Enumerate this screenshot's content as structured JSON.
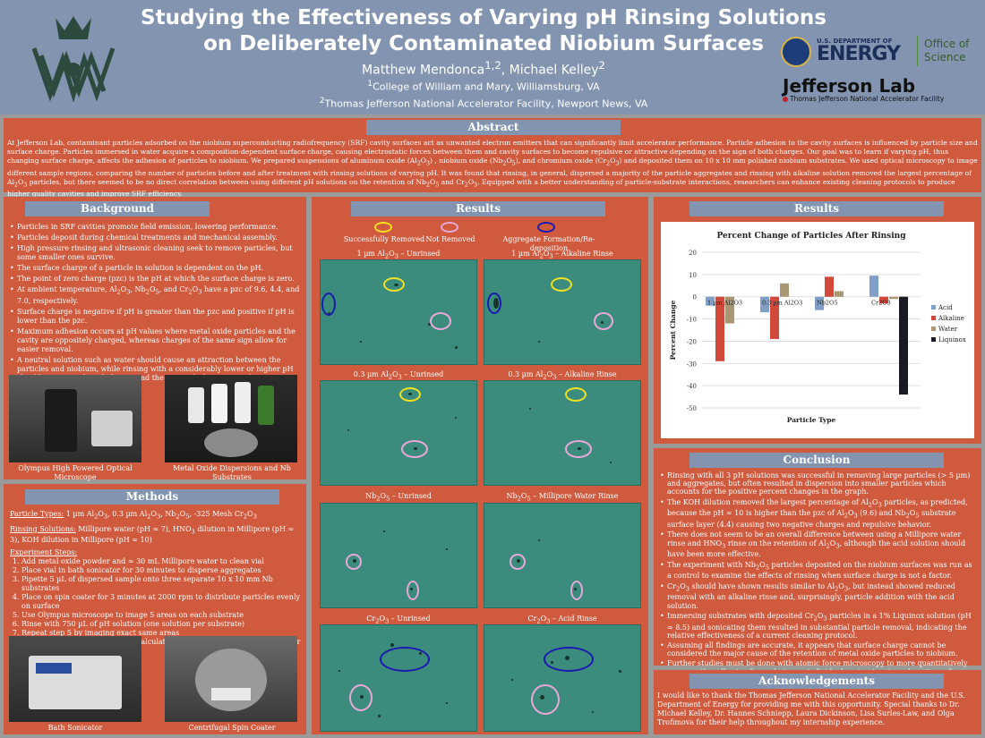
{
  "header": {
    "title_line1": "Studying the Effectiveness of Varying pH Rinsing Solutions",
    "title_line2": "on Deliberately Contaminated Niobium Surfaces",
    "authors": "Matthew Mendonca1,2, Michael Kelley2",
    "affil1": "1College of William and Mary, Williamsburg, VA",
    "affil2": "2Thomas Jefferson National Accelerator Facility, Newport News, VA",
    "doe_small": "U.S. DEPARTMENT OF",
    "doe_big": "ENERGY",
    "doe_office": "Office of",
    "doe_science": "Science",
    "jlab_big": "Jefferson Lab",
    "jlab_small": "Thomas Jefferson National Accelerator Facility"
  },
  "abstract": {
    "title": "Abstract",
    "text": "At Jefferson Lab, contaminant particles adsorbed on the niobium superconducting radiofrequency (SRF) cavity surfaces act as unwanted electron emitters that can significantly limit accelerator performance. Particle adhesion to the cavity surfaces is influenced by particle size and surface charge. Particles immersed in water acquire a composition-dependent surface charge, causing electrostatic forces between them and cavity surfaces to become repulsive or attractive depending on the sign of both charges. Our goal was to learn if varying pH, thus changing surface charge, affects the adhesion of particles to niobium. We prepared suspensions of aluminum oxide (Al2O3) , niobium oxide (Nb2O5), and chromium oxide (Cr2O3) and deposited them on 10 x 10 mm polished niobium substrates. We used optical microscopy to image different sample regions, comparing the number of particles before and after treatment with rinsing solutions of varying pH. It was found that rinsing, in general, dispersed a majority of the particle aggregates and rinsing with alkaline solution removed the largest percentage of Al2O3 particles, but there seemed to be no direct correlation between using different pH solutions on the retention of Nb2O5 and Cr2O3. Equipped with a better understanding of particle-substrate interactions, researchers can enhance existing cleaning protocols to produce higher quality cavities and improve SRF efficiency."
  },
  "background": {
    "title": "Background",
    "bullets": [
      "Particles in SRF cavities promote field emission, lowering performance.",
      "Particles deposit during chemical treatments and mechanical assembly.",
      "High pressure rinsing and ultrasonic cleaning seek to remove particles, but some smaller ones survive.",
      "The surface charge of a particle in solution is dependent on the pH.",
      "The point of zero charge (pzc) is the pH at which the surface charge is zero.",
      "At ambient temperature, Al2O3, Nb2O5, and Cr2O3 have a pzc of 9.6, 4.4, and 7.0, respectively.",
      "Surface charge is negative if pH is greater than the pzc and positive if pH is lower than the pzc.",
      "Maximum adhesion occurs at pH values where metal oxide particles and the cavity are oppositely charged, whereas charges of the same sign allow for easier removal.",
      "A neutral solution such as water should cause an attraction between the particles and niobium, while rinsing with a considerably lower or higher pH should cause repulsive behavior and the removal of more particles."
    ],
    "photo1_caption": "Olympus High Powered Optical Microscope",
    "photo2_caption": "Metal Oxide Dispersions and Nb Substrates"
  },
  "methods": {
    "title": "Methods",
    "types_label": "Particle Types:",
    "types_text": " 1 µm Al2O3, 0.3 µm Al2O3, Nb2O5, -325 Mesh Cr2O3",
    "rinse_label": "Rinsing Solutions:",
    "rinse_text": " Millipore water (pH ≈ 7), HNO3 dilution in Millipore (pH ≈ 3), KOH dilution in Millipore (pH ≈ 10)",
    "steps_label": "Experiment Steps:",
    "steps": [
      "Add metal oxide powder and ≈ 30 mL Millipore water to clean vial",
      "Place vial in bath sonicator for 30 minutes to disperse aggregates",
      "Pipette 5 µL of dispersed sample onto three separate 10 x 10 mm Nb substrates",
      "Place on spin coater for 3 minutes at 2000 rpm to distribute particles evenly on surface",
      "Use Olympus microscope to image 5 areas on each substrate",
      "Rinse with 750 µL of pH solution (one solution per substrate)",
      "Repeat step 5 by imaging exact same areas",
      "Use image analysis software to calculate percentage of particles removed or retained"
    ],
    "photo1_caption": "Bath Sonicator",
    "photo2_caption": "Centrifugal Spin Coater"
  },
  "results_mid": {
    "title": "Results",
    "legend": [
      "Successfully Removed",
      "Not Removed",
      "Aggregate Formation/Re-deposition"
    ],
    "legend_colors": [
      "#f0e020",
      "#e8a8d8",
      "#1a1ab0"
    ],
    "images": [
      {
        "caption": "1 µm Al2O3 – Unrinsed"
      },
      {
        "caption": "1 µm Al2O3 – Alkaline Rinse"
      },
      {
        "caption": "0.3 µm Al2O3 – Unrinsed"
      },
      {
        "caption": "0.3 µm Al2O3 – Alkaline Rinse"
      },
      {
        "caption": "Nb2O5 – Unrinsed"
      },
      {
        "caption": "Nb2O5 – Millipore Water Rinse"
      },
      {
        "caption": "Cr2O3 – Unrinsed"
      },
      {
        "caption": "Cr2O3 – Acid Rinse"
      }
    ]
  },
  "results_right": {
    "title": "Results"
  },
  "chart_data": {
    "type": "bar",
    "title": "Percent Change of Particles After Rinsing",
    "xlabel": "Particle Type",
    "ylabel": "Percent Change",
    "ylim": [
      -50,
      20
    ],
    "yticks": [
      20,
      10,
      0,
      -10,
      -20,
      -30,
      -40,
      -50
    ],
    "categories": [
      "1 µm Al2O3",
      "0.3 µm Al2O3",
      "Nb2O5",
      "Cr2O3"
    ],
    "series": [
      {
        "name": "Acid",
        "color": "#7f9fc6",
        "values": [
          -4,
          -7,
          -6,
          9.5
        ]
      },
      {
        "name": "Alkaline",
        "color": "#d2483a",
        "values": [
          -29,
          -19,
          9,
          -3
        ]
      },
      {
        "name": "Water",
        "color": "#a99672",
        "values": [
          -12,
          6,
          2.5,
          -1
        ]
      },
      {
        "name": "Liquinox",
        "color": "#1a1a24",
        "values": [
          null,
          null,
          null,
          -44
        ]
      }
    ],
    "legend": "right"
  },
  "conclusion": {
    "title": "Conclusion",
    "bullets": [
      "Rinsing with all 3 pH solutions was successful in removing large particles (> 5 µm) and aggregates, but often resulted in dispersion into smaller particles which accounts for the positive percent changes in the graph.",
      "The KOH dilution removed the largest percentage of Al2O3 particles, as predicted, because the pH ≈ 10 is higher than the pzc of Al2O3 (9.6) and Nb2O5 substrate surface layer (4.4) causing two negative charges and repulsive behavior.",
      "There does not seem to be an overall difference between using a Millipore water rinse and HNO3 rinse on the retention of Al2O3, although the acid solution should have been more effective.",
      "The experiment with Nb2O5 particles deposited on the niobium surfaces was run as a control to examine the effects of rinsing when surface charge is not a factor.",
      "Cr2O3 should have shown results similar to Al2O3, but instead showed reduced removal with an alkaline rinse and, surprisingly, particle addition with the acid solution.",
      "Immersing substrates with deposited Cr2O3 particles in a 1% Liquinox solution (pH ≈ 8.5) and sonicating them resulted in substantial particle removal, indicating the relative effectiveness of a current cleaning protocol.",
      "Assuming all findings are accurate, it appears that surface charge cannot be considered the major cause of the retention of metal oxide particles to niobium.",
      "Further studies must be done with atomic force microscopy to more quantitatively measure the adhesion forces between individual contaminants and cavity surfaces."
    ]
  },
  "acknowledgements": {
    "title": "Acknowledgements",
    "text": "I would like to thank the Thomas Jefferson National Accelerator Facility and the U.S. Department of Energy for providing me with this opportunity. Special thanks to Dr. Michael Kelley, Dr. Hannes Schniepp, Laura Dickinson, Lisa Surles-Law, and Olga Trofimova for their help throughout my internship experience."
  }
}
